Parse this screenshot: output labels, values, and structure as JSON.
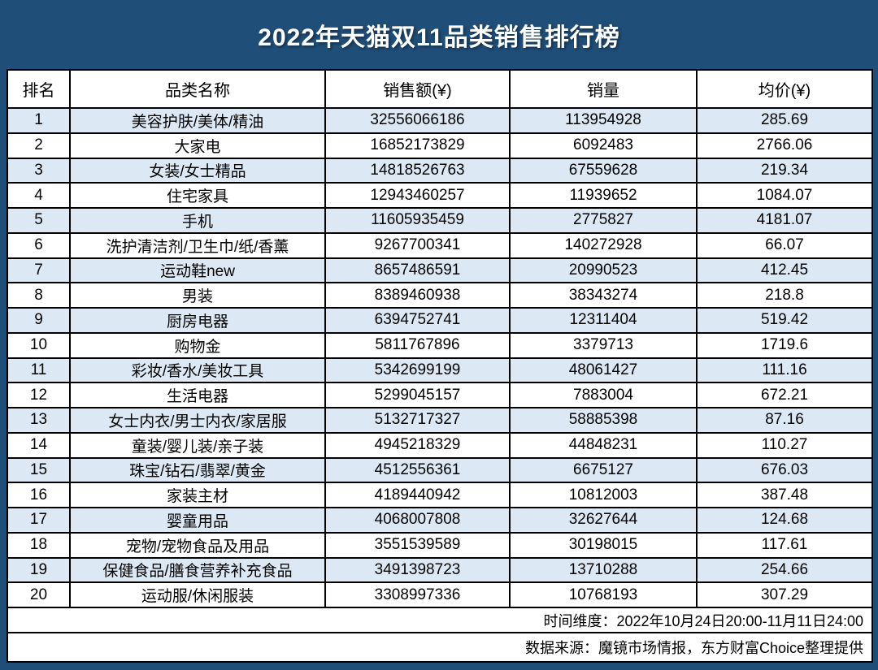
{
  "title": "2022年天猫双11品类销售排行榜",
  "chart_data": {
    "type": "table",
    "title": "2022年天猫双11品类销售排行榜",
    "columns": [
      "排名",
      "品类名称",
      "销售额(¥)",
      "销量",
      "均价(¥)"
    ],
    "rows": [
      [
        "1",
        "美容护肤/美体/精油",
        "32556066186",
        "113954928",
        "285.69"
      ],
      [
        "2",
        "大家电",
        "16852173829",
        "6092483",
        "2766.06"
      ],
      [
        "3",
        "女装/女士精品",
        "14818526763",
        "67559628",
        "219.34"
      ],
      [
        "4",
        "住宅家具",
        "12943460257",
        "11939652",
        "1084.07"
      ],
      [
        "5",
        "手机",
        "11605935459",
        "2775827",
        "4181.07"
      ],
      [
        "6",
        "洗护清洁剂/卫生巾/纸/香薰",
        "9267700341",
        "140272928",
        "66.07"
      ],
      [
        "7",
        "运动鞋new",
        "8657486591",
        "20990523",
        "412.45"
      ],
      [
        "8",
        "男装",
        "8389460938",
        "38343274",
        "218.8"
      ],
      [
        "9",
        "厨房电器",
        "6394752741",
        "12311404",
        "519.42"
      ],
      [
        "10",
        "购物金",
        "5811767896",
        "3379713",
        "1719.6"
      ],
      [
        "11",
        "彩妆/香水/美妆工具",
        "5342699199",
        "48061427",
        "111.16"
      ],
      [
        "12",
        "生活电器",
        "5299045157",
        "7883004",
        "672.21"
      ],
      [
        "13",
        "女士内衣/男士内衣/家居服",
        "5132717327",
        "58885398",
        "87.16"
      ],
      [
        "14",
        "童装/婴儿装/亲子装",
        "4945218329",
        "44848231",
        "110.27"
      ],
      [
        "15",
        "珠宝/钻石/翡翠/黄金",
        "4512556361",
        "6675127",
        "676.03"
      ],
      [
        "16",
        "家装主材",
        "4189440942",
        "10812003",
        "387.48"
      ],
      [
        "17",
        "婴童用品",
        "4068007808",
        "32627644",
        "124.68"
      ],
      [
        "18",
        "宠物/宠物食品及用品",
        "3551539589",
        "30198015",
        "117.61"
      ],
      [
        "19",
        "保健食品/膳食营养补充食品",
        "3491398723",
        "13710288",
        "254.66"
      ],
      [
        "20",
        "运动服/休闲服装",
        "3308997336",
        "10768193",
        "307.29"
      ]
    ]
  },
  "footer": {
    "time_dimension": "时间维度：2022年10月24日20:00-11月11日24:00",
    "data_source": "数据来源：魔镜市场情报，东方财富Choice整理提供"
  },
  "colors": {
    "page_bg": "#1F4E79",
    "banded_row_bg": "#DCE9F5",
    "row_bg": "#FFFFFF",
    "border": "#000000",
    "title_text": "#FFFFFF",
    "body_text": "#000000"
  }
}
